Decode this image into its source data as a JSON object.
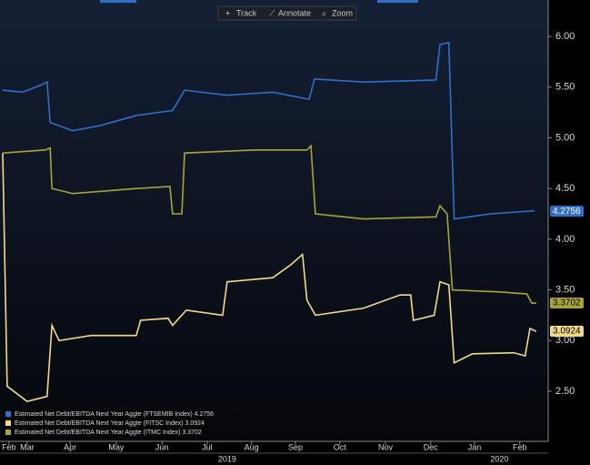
{
  "toolbar": [
    "Track",
    "Annotate",
    "Zoom"
  ],
  "chart_data": {
    "type": "line",
    "xlim": [
      0,
      12.3
    ],
    "xticks": [
      {
        "value": 0.14,
        "label": "Feb"
      },
      {
        "value": 0.55,
        "label": "Mar"
      },
      {
        "value": 1.52,
        "label": "Apr"
      },
      {
        "value": 2.56,
        "label": "May"
      },
      {
        "value": 3.59,
        "label": "Jun"
      },
      {
        "value": 4.61,
        "label": "Jul"
      },
      {
        "value": 5.61,
        "label": "Aug"
      },
      {
        "value": 6.6,
        "label": "Sep"
      },
      {
        "value": 7.6,
        "label": "Oct"
      },
      {
        "value": 8.63,
        "label": "Nov"
      },
      {
        "value": 9.65,
        "label": "Dec"
      },
      {
        "value": 10.64,
        "label": "Jan"
      },
      {
        "value": 11.66,
        "label": "Feb"
      }
    ],
    "year_labels": [
      {
        "value": 5.06,
        "label": "2019"
      },
      {
        "value": 11.2,
        "label": "2020"
      }
    ],
    "ylim": [
      2.0,
      6.3
    ],
    "yticks": [
      {
        "value": 2.5,
        "label": "2.50"
      },
      {
        "value": 3.0,
        "label": "3.00"
      },
      {
        "value": 3.5,
        "label": "3.50"
      },
      {
        "value": 4.0,
        "label": "4.00"
      },
      {
        "value": 4.5,
        "label": "4.50"
      },
      {
        "value": 5.0,
        "label": "5.00"
      },
      {
        "value": 5.5,
        "label": "5.50"
      },
      {
        "value": 6.0,
        "label": "6.00"
      }
    ],
    "grid": false,
    "legend": "bottom-left",
    "series": [
      {
        "name": "Estimated Net Debt/EBITDA Next Year Aggte (FTSEMIB Index) 4.2756",
        "color": "#2f6fc8",
        "last_value": 4.2756,
        "label_text_color": "#ffffff",
        "x": [
          0,
          0.45,
          0.86,
          1.0,
          1.07,
          1.58,
          2.19,
          3.01,
          3.83,
          4.1,
          5.06,
          6.09,
          6.91,
          7.03,
          8.14,
          9.77,
          9.86,
          10.06,
          10.18,
          11.0,
          11.99
        ],
        "values": [
          5.47,
          5.45,
          5.52,
          5.55,
          5.15,
          5.07,
          5.12,
          5.22,
          5.27,
          5.47,
          5.42,
          5.45,
          5.38,
          5.58,
          5.55,
          5.57,
          5.92,
          5.94,
          4.2,
          4.25,
          4.28
        ]
      },
      {
        "name": "Estimated Net Debt/EBITDA Next Year Aggte (FITSC Index) 3.0924",
        "color": "#f3d98c",
        "last_value": 3.0924,
        "label_text_color": "#000000",
        "x": [
          0,
          0.1,
          0.55,
          1.0,
          1.11,
          1.27,
          1.99,
          3.01,
          3.11,
          3.73,
          3.83,
          4.14,
          4.96,
          5.06,
          6.09,
          6.5,
          6.76,
          6.86,
          7.05,
          8.14,
          8.96,
          9.2,
          9.26,
          9.73,
          9.86,
          10.06,
          10.18,
          10.59,
          11.52,
          11.78,
          11.89,
          12.03
        ],
        "values": [
          4.85,
          2.55,
          2.4,
          2.45,
          3.15,
          3.0,
          3.05,
          3.05,
          3.2,
          3.22,
          3.15,
          3.3,
          3.25,
          3.58,
          3.62,
          3.75,
          3.85,
          3.4,
          3.25,
          3.32,
          3.45,
          3.45,
          3.2,
          3.25,
          3.58,
          3.55,
          2.78,
          2.87,
          2.88,
          2.85,
          3.12,
          3.09
        ]
      },
      {
        "name": "Estimated Net Debt/EBITDA Next Year Aggte (ITMC Index) 3.3702",
        "color": "#a9a535",
        "last_value": 3.3702,
        "label_text_color": "#000000",
        "x": [
          0,
          0.96,
          1.07,
          1.11,
          1.58,
          3.01,
          3.77,
          3.83,
          4.04,
          4.1,
          5.68,
          6.86,
          6.95,
          7.05,
          8.14,
          9.77,
          9.86,
          10.02,
          10.14,
          11.21,
          11.82,
          11.93,
          12.03
        ],
        "values": [
          4.85,
          4.88,
          4.9,
          4.5,
          4.45,
          4.5,
          4.52,
          4.25,
          4.25,
          4.85,
          4.88,
          4.88,
          4.92,
          4.25,
          4.2,
          4.22,
          4.33,
          4.25,
          3.5,
          3.48,
          3.46,
          3.37,
          3.37
        ]
      }
    ]
  }
}
